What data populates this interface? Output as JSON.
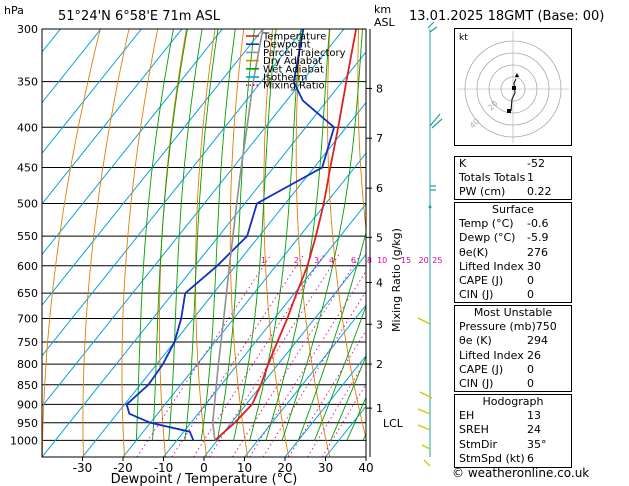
{
  "header": {
    "location": "51°24'N  6°58'E  71m  ASL",
    "datetime": "13.01.2025  18GMT  (Base: 00)",
    "hpa_label": "hPa",
    "km_label": "km",
    "asl_label": "ASL"
  },
  "legend": [
    {
      "label": "Temperature",
      "color": "#e02020",
      "style": "solid"
    },
    {
      "label": "Dewpoint",
      "color": "#1030c0",
      "style": "solid"
    },
    {
      "label": "Parcel Trajectory",
      "color": "#909090",
      "style": "solid"
    },
    {
      "label": "Dry Adiabat",
      "color": "#e08000",
      "style": "solid"
    },
    {
      "label": "Wet Adiabat",
      "color": "#00a000",
      "style": "solid"
    },
    {
      "label": "Isotherm",
      "color": "#00a0e0",
      "style": "solid"
    },
    {
      "label": "Mixing Ratio",
      "color": "#e000a0",
      "style": "dotted"
    }
  ],
  "chart_data": {
    "type": "line",
    "title": "Skew-T log-P sounding",
    "xlabel": "Dewpoint / Temperature (°C)",
    "ylabel": "hPa",
    "right_axis_label": "Mixing Ratio (g/kg)",
    "xlim": [
      -40,
      40
    ],
    "ylim": [
      1050,
      300
    ],
    "x_ticks": [
      -30,
      -20,
      -10,
      0,
      10,
      20,
      30,
      40
    ],
    "pressure_ticks": [
      300,
      350,
      400,
      450,
      500,
      550,
      600,
      650,
      700,
      750,
      800,
      850,
      900,
      950,
      1000
    ],
    "km_ticks": [
      {
        "label": "8",
        "p": 357
      },
      {
        "label": "7",
        "p": 413
      },
      {
        "label": "6",
        "p": 478
      },
      {
        "label": "5",
        "p": 552
      },
      {
        "label": "4",
        "p": 630
      },
      {
        "label": "3",
        "p": 712
      },
      {
        "label": "2",
        "p": 800
      },
      {
        "label": "1",
        "p": 910
      }
    ],
    "lcl": {
      "label": "LCL",
      "p": 950
    },
    "mixing_ratio_labels": [
      "1",
      "2",
      "3",
      "4",
      "6",
      "8",
      "10",
      "15",
      "20",
      "25"
    ],
    "mixing_ratio_values": [
      1,
      2,
      3,
      4,
      6,
      8,
      10,
      15,
      20,
      25
    ],
    "series": [
      {
        "name": "Temperature",
        "points": [
          [
            1000,
            -0.6
          ],
          [
            950,
            0.8
          ],
          [
            900,
            1.5
          ],
          [
            850,
            -0.2
          ],
          [
            800,
            -2.5
          ],
          [
            750,
            -4.6
          ],
          [
            700,
            -6.8
          ],
          [
            650,
            -9.5
          ],
          [
            600,
            -12.2
          ],
          [
            550,
            -16.0
          ],
          [
            500,
            -20.5
          ],
          [
            450,
            -26.0
          ],
          [
            400,
            -32.0
          ],
          [
            350,
            -39.0
          ],
          [
            300,
            -47.0
          ]
        ]
      },
      {
        "name": "Dewpoint",
        "points": [
          [
            1000,
            -5.9
          ],
          [
            975,
            -8.5
          ],
          [
            950,
            -20.0
          ],
          [
            925,
            -27.0
          ],
          [
            900,
            -29.5
          ],
          [
            850,
            -28.0
          ],
          [
            800,
            -28.5
          ],
          [
            750,
            -30.0
          ],
          [
            700,
            -33.0
          ],
          [
            650,
            -37.0
          ],
          [
            600,
            -34.5
          ],
          [
            550,
            -33.0
          ],
          [
            500,
            -37.0
          ],
          [
            450,
            -28.0
          ],
          [
            400,
            -33.0
          ],
          [
            370,
            -46.0
          ],
          [
            350,
            -52.0
          ],
          [
            300,
            -60.0
          ]
        ]
      },
      {
        "name": "Parcel Trajectory",
        "points": [
          [
            1000,
            -0.6
          ],
          [
            950,
            -4.6
          ],
          [
            900,
            -7.8
          ],
          [
            850,
            -11.2
          ],
          [
            800,
            -14.8
          ],
          [
            750,
            -18.5
          ],
          [
            700,
            -22.5
          ],
          [
            650,
            -26.8
          ],
          [
            600,
            -31.5
          ],
          [
            550,
            -36.5
          ],
          [
            500,
            -42.0
          ],
          [
            450,
            -48.0
          ],
          [
            400,
            -54.5
          ],
          [
            350,
            -62.0
          ],
          [
            300,
            -70.0
          ]
        ]
      }
    ]
  },
  "indices": [
    {
      "label": "K",
      "value": "-52"
    },
    {
      "label": "Totals Totals",
      "value": "1"
    },
    {
      "label": "PW (cm)",
      "value": "0.22"
    }
  ],
  "surface": {
    "title": "Surface",
    "rows": [
      {
        "label": "Temp (°C)",
        "value": "-0.6"
      },
      {
        "label": "Dewp (°C)",
        "value": "-5.9"
      },
      {
        "label": "θe(K)",
        "value": "276"
      },
      {
        "label": "Lifted Index",
        "value": "30"
      },
      {
        "label": "CAPE (J)",
        "value": "0"
      },
      {
        "label": "CIN (J)",
        "value": "0"
      }
    ]
  },
  "most_unstable": {
    "title": "Most Unstable",
    "rows": [
      {
        "label": "Pressure (mb)",
        "value": "750"
      },
      {
        "label": "θe (K)",
        "value": "294"
      },
      {
        "label": "Lifted Index",
        "value": "26"
      },
      {
        "label": "CAPE (J)",
        "value": "0"
      },
      {
        "label": "CIN (J)",
        "value": "0"
      }
    ]
  },
  "hodograph_box": {
    "title": "Hodograph",
    "rows": [
      {
        "label": "EH",
        "value": "13"
      },
      {
        "label": "SREH",
        "value": "24"
      },
      {
        "label": "StmDir",
        "value": "35°"
      },
      {
        "label": "StmSpd (kt)",
        "value": "6"
      }
    ]
  },
  "hodograph_plot": {
    "units_label": "kt",
    "ring_labels": [
      "20",
      "40"
    ]
  },
  "footer": "© weatheronline.co.uk"
}
